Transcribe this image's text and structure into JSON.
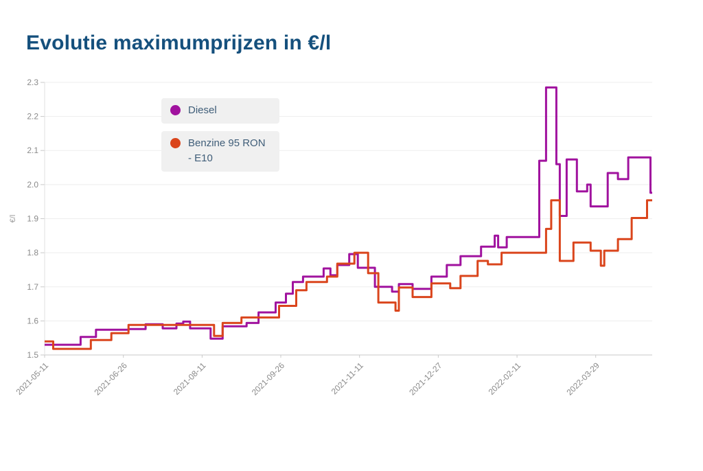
{
  "page": {
    "title": "Evolutie maximumprijzen in €/l"
  },
  "chart_data": {
    "type": "line",
    "step": true,
    "title": "Evolutie maximumprijzen in €/l",
    "xlabel": "",
    "ylabel": "€/l",
    "ylim": [
      1.5,
      2.3
    ],
    "yticks": [
      1.5,
      1.6,
      1.7,
      1.8,
      1.9,
      2.0,
      2.1,
      2.2,
      2.3
    ],
    "xticks": [
      "2021-05-11",
      "2021-06-26",
      "2021-08-11",
      "2021-09-26",
      "2021-11-11",
      "2021-12-27",
      "2022-02-11",
      "2022-03-29"
    ],
    "x_domain": [
      "2021-05-11",
      "2022-05-01"
    ],
    "grid": "horizontal",
    "legend_position": "top-left-inside",
    "axis_text_color": "#8a8a8a",
    "grid_color": "#ededed",
    "axis_line_color": "#c9c9c9",
    "x": [
      "2021-05-11",
      "2021-05-16",
      "2021-06-01",
      "2021-06-07",
      "2021-06-10",
      "2021-06-19",
      "2021-06-29",
      "2021-07-09",
      "2021-07-19",
      "2021-07-27",
      "2021-07-31",
      "2021-08-04",
      "2021-08-16",
      "2021-08-18",
      "2021-08-23",
      "2021-09-03",
      "2021-09-06",
      "2021-09-13",
      "2021-09-23",
      "2021-09-25",
      "2021-09-29",
      "2021-10-03",
      "2021-10-05",
      "2021-10-09",
      "2021-10-11",
      "2021-10-21",
      "2021-10-23",
      "2021-10-25",
      "2021-10-29",
      "2021-11-05",
      "2021-11-08",
      "2021-11-10",
      "2021-11-16",
      "2021-11-20",
      "2021-11-22",
      "2021-11-30",
      "2021-12-02",
      "2021-12-04",
      "2021-12-12",
      "2021-12-23",
      "2022-01-01",
      "2022-01-03",
      "2022-01-09",
      "2022-01-19",
      "2022-01-21",
      "2022-01-25",
      "2022-01-29",
      "2022-01-31",
      "2022-02-02",
      "2022-02-05",
      "2022-02-24",
      "2022-02-28",
      "2022-03-03",
      "2022-03-06",
      "2022-03-08",
      "2022-03-12",
      "2022-03-16",
      "2022-03-18",
      "2022-03-24",
      "2022-03-26",
      "2022-04-01",
      "2022-04-03",
      "2022-04-05",
      "2022-04-11",
      "2022-04-17",
      "2022-04-19",
      "2022-04-28",
      "2022-04-30"
    ],
    "series": [
      {
        "name": "Diesel",
        "color": "#a0129e",
        "values": [
          1.53,
          1.53,
          1.553,
          1.553,
          1.574,
          1.574,
          1.576,
          1.59,
          1.578,
          1.592,
          1.598,
          1.578,
          1.548,
          1.548,
          1.584,
          1.584,
          1.594,
          1.625,
          1.654,
          1.654,
          1.68,
          1.714,
          1.714,
          1.73,
          1.73,
          1.754,
          1.754,
          1.734,
          1.764,
          1.796,
          1.796,
          1.756,
          1.756,
          1.7,
          1.7,
          1.686,
          1.686,
          1.708,
          1.694,
          1.73,
          1.764,
          1.764,
          1.79,
          1.79,
          1.818,
          1.818,
          1.85,
          1.816,
          1.816,
          1.846,
          2.07,
          2.285,
          2.285,
          2.06,
          1.908,
          2.074,
          2.074,
          1.98,
          2.0,
          1.936,
          1.936,
          1.936,
          2.034,
          2.016,
          2.08,
          2.08,
          2.08,
          1.976
        ]
      },
      {
        "name": "Benzine 95 RON - E10",
        "color": "#da451c",
        "values": [
          1.54,
          1.518,
          1.518,
          1.544,
          1.544,
          1.564,
          1.588,
          1.588,
          1.588,
          1.588,
          1.588,
          1.588,
          1.588,
          1.556,
          1.594,
          1.61,
          1.61,
          1.61,
          1.61,
          1.644,
          1.644,
          1.644,
          1.69,
          1.69,
          1.714,
          1.714,
          1.73,
          1.73,
          1.768,
          1.768,
          1.8,
          1.8,
          1.74,
          1.74,
          1.654,
          1.654,
          1.63,
          1.698,
          1.67,
          1.71,
          1.71,
          1.696,
          1.732,
          1.776,
          1.776,
          1.766,
          1.766,
          1.766,
          1.8,
          1.8,
          1.8,
          1.87,
          1.954,
          1.954,
          1.776,
          1.776,
          1.83,
          1.83,
          1.83,
          1.806,
          1.762,
          1.806,
          1.806,
          1.84,
          1.84,
          1.902,
          1.954,
          1.954
        ]
      }
    ]
  }
}
